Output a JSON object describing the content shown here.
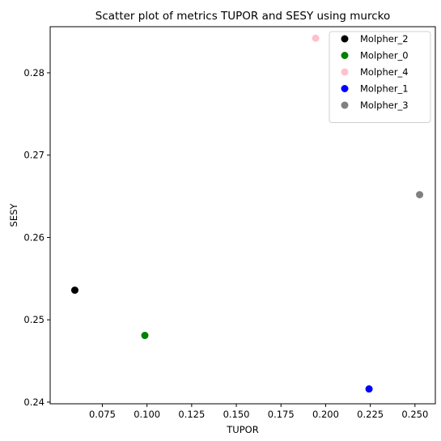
{
  "chart_data": {
    "type": "scatter",
    "title": "Scatter plot of metrics TUPOR and SESY using murcko",
    "xlabel": "TUPOR",
    "ylabel": "SESY",
    "xlim": [
      0.0458,
      0.2614
    ],
    "ylim": [
      0.2398,
      0.2856
    ],
    "xticks": [
      0.075,
      0.1,
      0.125,
      0.15,
      0.175,
      0.2,
      0.225,
      0.25
    ],
    "xtick_labels": [
      "0.075",
      "0.100",
      "0.125",
      "0.150",
      "0.175",
      "0.200",
      "0.225",
      "0.250"
    ],
    "yticks": [
      0.24,
      0.25,
      0.26,
      0.27,
      0.28
    ],
    "ytick_labels": [
      "0.24",
      "0.25",
      "0.26",
      "0.27",
      "0.28"
    ],
    "grid": false,
    "legend_position": "top-right",
    "series": [
      {
        "name": "Molpher_2",
        "color": "#000000",
        "x": [
          0.0596
        ],
        "y": [
          0.2536
        ]
      },
      {
        "name": "Molpher_0",
        "color": "#008000",
        "x": [
          0.0988
        ],
        "y": [
          0.2481
        ]
      },
      {
        "name": "Molpher_4",
        "color": "#ffc0cb",
        "x": [
          0.1944
        ],
        "y": [
          0.2842
        ]
      },
      {
        "name": "Molpher_1",
        "color": "#0000ff",
        "x": [
          0.2243
        ],
        "y": [
          0.2416
        ]
      },
      {
        "name": "Molpher_3",
        "color": "#808080",
        "x": [
          0.2526
        ],
        "y": [
          0.2652
        ]
      }
    ]
  }
}
